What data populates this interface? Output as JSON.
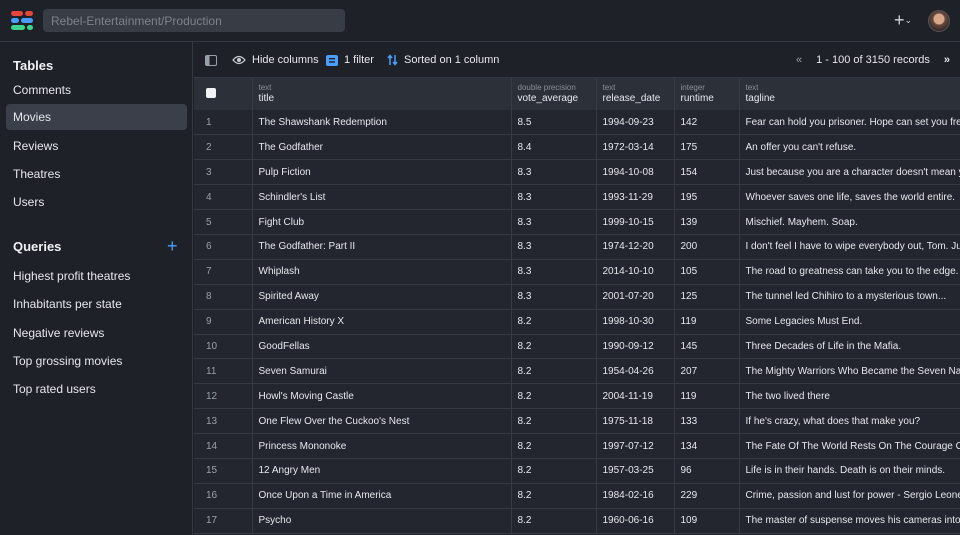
{
  "header": {
    "search_placeholder": "Rebel-Entertainment/Production",
    "add_label": "+",
    "add_chevron": "⌄",
    "logo_colors": [
      "#e8453c",
      "#4a9eff",
      "#3dd68c"
    ]
  },
  "sidebar": {
    "tables_heading": "Tables",
    "tables": [
      {
        "label": "Comments"
      },
      {
        "label": "Movies",
        "active": true
      },
      {
        "label": "Reviews"
      },
      {
        "label": "Theatres"
      },
      {
        "label": "Users"
      }
    ],
    "queries_heading": "Queries",
    "queries": [
      {
        "label": "Highest profit theatres"
      },
      {
        "label": "Inhabitants per state"
      },
      {
        "label": "Negative reviews"
      },
      {
        "label": "Top grossing movies"
      },
      {
        "label": "Top rated users"
      }
    ]
  },
  "toolbar": {
    "hide_columns": "Hide columns",
    "filter": "1 filter",
    "sorted": "Sorted on 1 column",
    "prev": "«",
    "records": "1 - 100 of 3150 records",
    "next": "»"
  },
  "table": {
    "columns": [
      {
        "type": "text",
        "name": "title"
      },
      {
        "type": "double precision",
        "name": "vote_average"
      },
      {
        "type": "text",
        "name": "release_date"
      },
      {
        "type": "integer",
        "name": "runtime"
      },
      {
        "type": "text",
        "name": "tagline"
      }
    ],
    "rows": [
      [
        "1",
        "The Shawshank Redemption",
        "8.5",
        "1994-09-23",
        "142",
        "Fear can hold you prisoner. Hope can set you free."
      ],
      [
        "2",
        "The Godfather",
        "8.4",
        "1972-03-14",
        "175",
        "An offer you can't refuse."
      ],
      [
        "3",
        "Pulp Fiction",
        "8.3",
        "1994-10-08",
        "154",
        "Just because you are a character doesn't mean you have character."
      ],
      [
        "4",
        "Schindler's List",
        "8.3",
        "1993-11-29",
        "195",
        "Whoever saves one life, saves the world entire."
      ],
      [
        "5",
        "Fight Club",
        "8.3",
        "1999-10-15",
        "139",
        "Mischief. Mayhem. Soap."
      ],
      [
        "6",
        "The Godfather: Part II",
        "8.3",
        "1974-12-20",
        "200",
        "I don't feel I have to wipe everybody out, Tom. Just my enemies."
      ],
      [
        "7",
        "Whiplash",
        "8.3",
        "2014-10-10",
        "105",
        "The road to greatness can take you to the edge."
      ],
      [
        "8",
        "Spirited Away",
        "8.3",
        "2001-07-20",
        "125",
        "The tunnel led Chihiro to a mysterious town..."
      ],
      [
        "9",
        "American History X",
        "8.2",
        "1998-10-30",
        "119",
        "Some Legacies Must End."
      ],
      [
        "10",
        "GoodFellas",
        "8.2",
        "1990-09-12",
        "145",
        "Three Decades of Life in the Mafia."
      ],
      [
        "11",
        "Seven Samurai",
        "8.2",
        "1954-04-26",
        "207",
        "The Mighty Warriors Who Became the Seven National Heroes of a Small Town"
      ],
      [
        "12",
        "Howl's Moving Castle",
        "8.2",
        "2004-11-19",
        "119",
        "The two lived there"
      ],
      [
        "13",
        "One Flew Over the Cuckoo's Nest",
        "8.2",
        "1975-11-18",
        "133",
        "If he's crazy, what does that make you?"
      ],
      [
        "14",
        "Princess Mononoke",
        "8.2",
        "1997-07-12",
        "134",
        "The Fate Of The World Rests On The Courage Of One Warrior."
      ],
      [
        "15",
        "12 Angry Men",
        "8.2",
        "1957-03-25",
        "96",
        "Life is in their hands. Death is on their minds."
      ],
      [
        "16",
        "Once Upon a Time in America",
        "8.2",
        "1984-02-16",
        "229",
        "Crime, passion and lust for power - Sergio Leone's explosive saga of gangland America."
      ],
      [
        "17",
        "Psycho",
        "8.2",
        "1960-06-16",
        "109",
        "The master of suspense moves his cameras into the icy blackness of the unexplained!"
      ]
    ]
  }
}
